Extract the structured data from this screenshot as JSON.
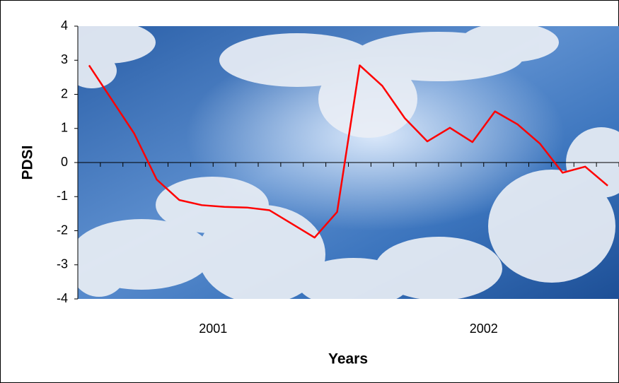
{
  "chart_data": {
    "type": "line",
    "x_axis_label": "Years",
    "y_axis_label": "PDSI",
    "categories": [
      null,
      null,
      null,
      null,
      null,
      null,
      null,
      null,
      null,
      null,
      null,
      null,
      null,
      null,
      null,
      null,
      null,
      null,
      null,
      null,
      null,
      null,
      null,
      null
    ],
    "groups": [
      "2001",
      "2002"
    ],
    "series": [
      {
        "color": "#ff0000",
        "values": [
          2.85,
          1.85,
          0.85,
          -0.5,
          -1.1,
          -1.25,
          -1.3,
          -1.32,
          -1.4,
          -1.8,
          -2.2,
          -1.45,
          2.85,
          2.25,
          1.3,
          0.62,
          1.02,
          0.6,
          1.5,
          1.12,
          0.55,
          -0.3,
          -0.12,
          -0.68
        ]
      }
    ],
    "ylim": [
      -4,
      4
    ],
    "yticks": [
      -4,
      -3,
      -2,
      -1,
      0,
      1,
      2,
      3,
      4
    ]
  }
}
